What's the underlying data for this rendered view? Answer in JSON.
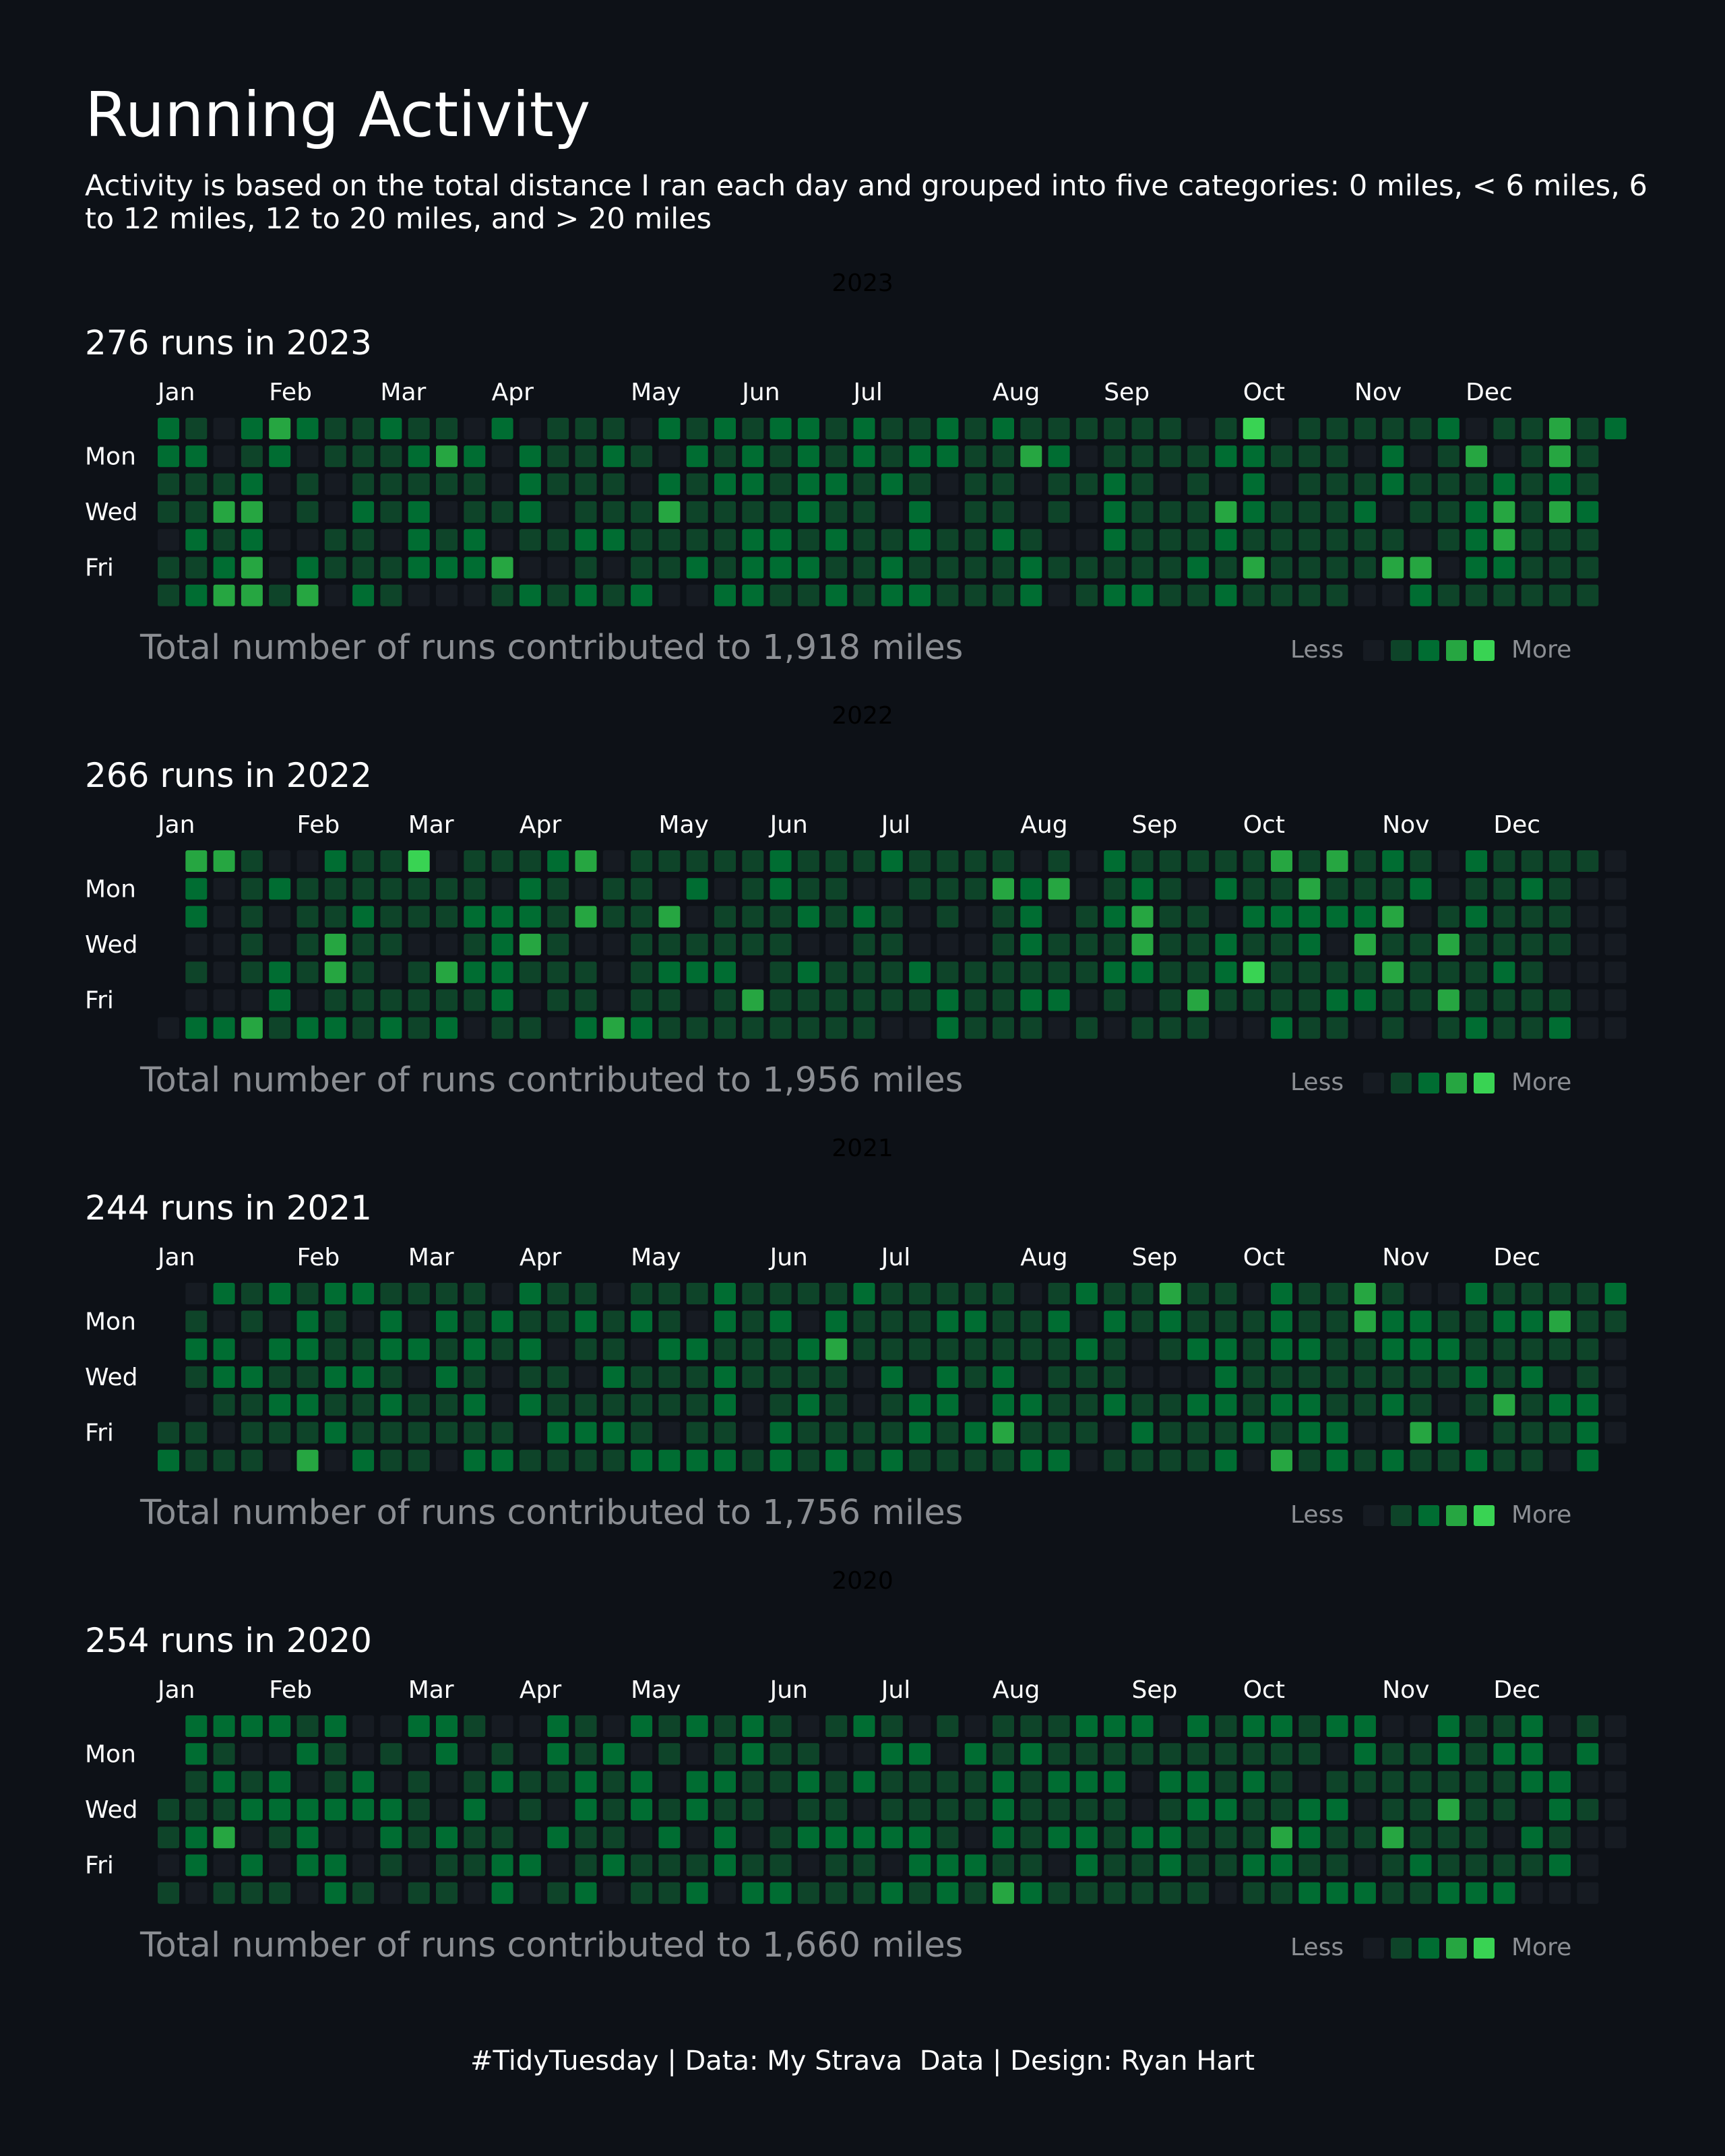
{
  "title": "Running Activity",
  "subtitle": "Activity is based on the total distance I ran each day and grouped into five categories: 0 miles, < 6 miles, 6 to 12 miles, 12 to 20 miles, and > 20 miles",
  "footer": "#TidyTuesday | Data: My Strava  Data | Design: Ryan Hart",
  "colors": {
    "background": "#0d1117",
    "levels": [
      "#161b22",
      "#0e4429",
      "#006d32",
      "#26a641",
      "#39d353"
    ],
    "text": "#ffffff",
    "muted": "#8b8e93"
  },
  "chart_data": [
    {
      "type": "heatmap",
      "year": 2023,
      "year_tag": "2023",
      "heading": "276 runs in 2023",
      "caption": "Total number of runs contributed to 1,918 miles",
      "runs": 276,
      "total_miles": 1918,
      "jan1_weekday": 0,
      "day_labels": [
        "Mon",
        "Wed",
        "Fri"
      ],
      "month_labels": [
        "Jan",
        "Feb",
        "Mar",
        "Apr",
        "May",
        "Jun",
        "Jul",
        "Aug",
        "Sep",
        "Oct",
        "Nov",
        "Dec"
      ],
      "levels": "2211011121121200131232123233320000120110231100110111211221110111212220131012002112202001031022210211101011111212121120101011122023110121112021211121221222211122122221211121212221111111201221212212220011111111112111211130012212110101010011112221211111121101111011112112032124222131010111111111111111111101211012201301011032211110103122211023321111111133231111112111211100232101121000101211111312211210",
      "legend": {
        "less": "Less",
        "more": "More"
      }
    },
    {
      "type": "heatmap",
      "year": 2022,
      "year_tag": "2022",
      "heading": "266 runs in 2022",
      "caption": "Total number of runs contributed to 1,956 miles",
      "runs": 266,
      "total_miles": 1956,
      "jan1_weekday": 6,
      "day_labels": [
        "Mon",
        "Wed",
        "Fri"
      ],
      "month_labels": [
        "Jan",
        "Feb",
        "Mar",
        "Apr",
        "May",
        "Jun",
        "Jul",
        "Aug",
        "Sep",
        "Oct",
        "Nov",
        "Dec"
      ],
      "levels": "0322010230000021111103020022101111022113312112111111110124110111011031211212101022221122310121111103030112011000311111121031211120120110112111111031221111111202111110111102111120111101100210111012211001111311111022212113011200011101212121012332011111111101113112022101121410312111213221113120121112312021313111201110001313121211121111211121111111110121",
      "legend": {
        "less": "Less",
        "more": "More"
      }
    },
    {
      "type": "heatmap",
      "year": 2021,
      "year_tag": "2021",
      "heading": "244 runs in 2021",
      "caption": "Total number of runs contributed to 1,756 miles",
      "runs": 244,
      "total_miles": 1756,
      "jan1_weekday": 5,
      "day_labels": [
        "Mon",
        "Wed",
        "Fri"
      ],
      "month_labels": [
        "Jan",
        "Feb",
        "Mar",
        "Apr",
        "May",
        "Jun",
        "Jul",
        "Aug",
        "Sep",
        "Oct",
        "Nov",
        "Dec"
      ],
      "levels": "1201210112022101110211120212101221213211212020121121221211102011112121101121212021001221212011101121121012101121211201112112110210211122212212111100112111221021211123111221100111112112111022112122111211021111223101102121211112202111012112011100121321011111202111122212011112022212131121221111112233111011221202022113101210212112102121131112121111310210111122221",
      "legend": {
        "less": "Less",
        "more": "More"
      }
    },
    {
      "type": "heatmap",
      "year": 2020,
      "year_tag": "2020",
      "heading": "254 runs in 2020",
      "caption": "Total number of runs contributed to 1,660 miles",
      "runs": 254,
      "total_miles": 1660,
      "jan1_weekday": 3,
      "day_labels": [
        "Mon",
        "Wed",
        "Fri"
      ],
      "month_labels": [
        "Jan",
        "Feb",
        "Mar",
        "Apr",
        "May",
        "Jun",
        "Jul",
        "Aug",
        "Sep",
        "Oct",
        "Nov",
        "Dec"
      ],
      "levels": "1101221122021213012012021202210112022202112022002200101022102011101220021110121100120122001102022102011122112021112020220111101211202201211212202211012111011201212011011211202021112112020211221101112202110211122213121111211212012121221212111121002110121221212211111121102121121211132111022122012112221010201113110111121221311211111121211012222021000221201201",
      "legend": {
        "less": "Less",
        "more": "More"
      }
    }
  ]
}
